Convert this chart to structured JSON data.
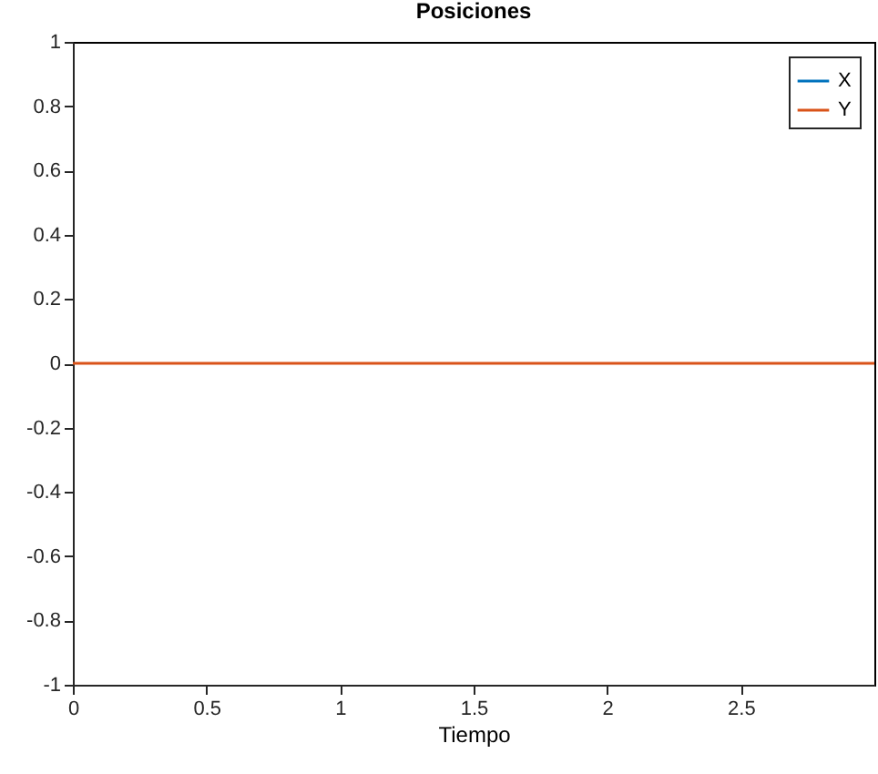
{
  "chart_data": {
    "type": "line",
    "title": "Posiciones",
    "xlabel": "Tiempo",
    "x": [
      0,
      3
    ],
    "series": [
      {
        "name": "X",
        "color": "#0072bd",
        "values": [
          null,
          null
        ]
      },
      {
        "name": "Y",
        "color": "#d95319",
        "values": [
          0,
          0
        ]
      }
    ],
    "xlim": [
      0,
      3
    ],
    "xticks": [
      0,
      0.5,
      1,
      1.5,
      2,
      2.5
    ],
    "ylim": [
      -1,
      1
    ],
    "yticks": [
      -1,
      -0.8,
      -0.6,
      -0.4,
      -0.2,
      0,
      0.2,
      0.4,
      0.6,
      0.8,
      1
    ],
    "grid": false,
    "legend": "top right",
    "line_style": "solid",
    "marker": "none"
  }
}
